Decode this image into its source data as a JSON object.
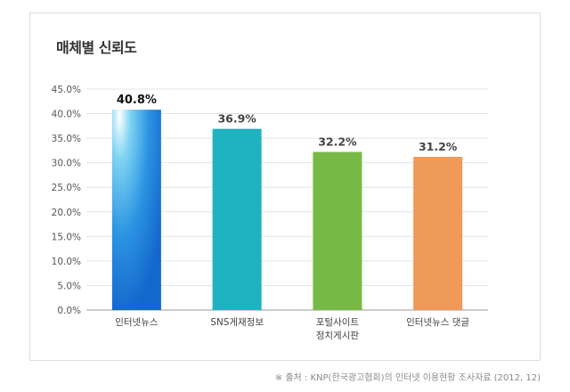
{
  "page": {
    "title": "매체별 신뢰도",
    "source": "※ 출처 : KNP(한국광고협회)의 인터넷 이용현황 조사자료 (2012, 12)"
  },
  "chart_data": {
    "type": "bar",
    "title": "매체별 신뢰도",
    "categories": [
      [
        "인터넷뉴스"
      ],
      [
        "SNS게재정보"
      ],
      [
        "포털사이트",
        "정치게시판"
      ],
      [
        "인터넷뉴스 댓글"
      ]
    ],
    "values": [
      40.8,
      36.9,
      32.2,
      31.2
    ],
    "value_labels": [
      "40.8%",
      "36.9%",
      "32.2%",
      "31.2%"
    ],
    "colors": [
      "#1a7ad6",
      "#1fb2c0",
      "#76b944",
      "#f09a59"
    ],
    "ylim": [
      0,
      45
    ],
    "yticks": [
      0,
      5,
      10,
      15,
      20,
      25,
      30,
      35,
      40,
      45
    ],
    "ytick_labels": [
      "0.0%",
      "5.0%",
      "10.0%",
      "15.0%",
      "20.0%",
      "25.0%",
      "30.0%",
      "35.0%",
      "40.0%",
      "45.0%"
    ],
    "grid": true,
    "xlabel": "",
    "ylabel": ""
  }
}
